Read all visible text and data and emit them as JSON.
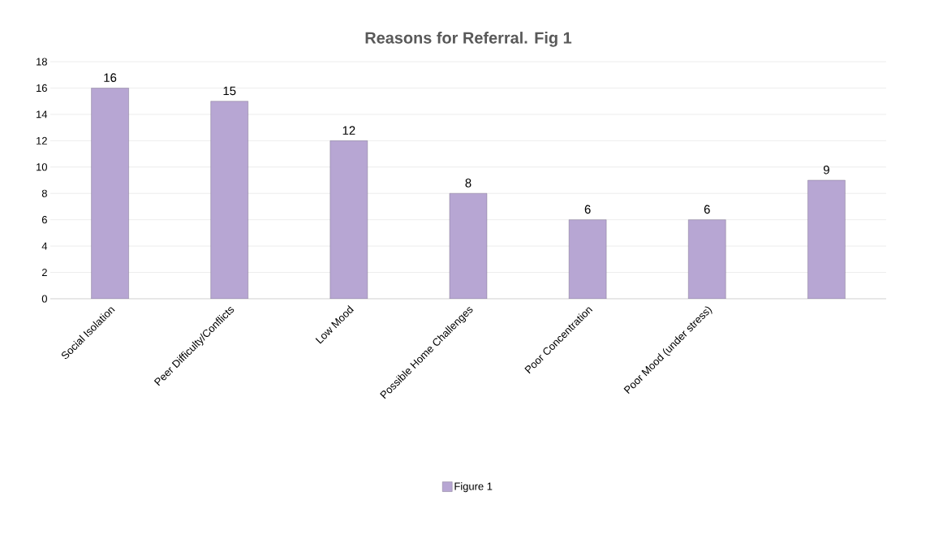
{
  "chart_data": {
    "type": "bar",
    "title": "Reasons for Referral. Fig 1",
    "categories": [
      "Social Isolation",
      "Peer Difficulty/Conflicts",
      "Low Mood",
      "Possible Home Challenges",
      "Poor Concentration",
      "Poor Mood (under stress)",
      null
    ],
    "series": [
      {
        "name": "Figure 1",
        "color": "#b7a6d3",
        "values": [
          16,
          15,
          12,
          8,
          6,
          6,
          9
        ]
      }
    ],
    "ylim": [
      0,
      18
    ],
    "yticks": [
      0,
      2,
      4,
      6,
      8,
      10,
      12,
      14,
      16,
      18
    ],
    "grid": "y",
    "legend": "bottom",
    "data_labels": true
  }
}
